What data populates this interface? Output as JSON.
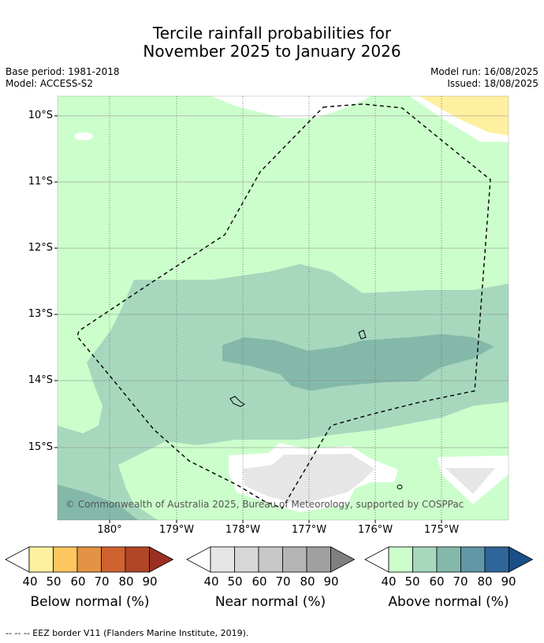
{
  "title": {
    "line1": "Tercile rainfall probabilities for",
    "line2": "November 2025 to January 2026"
  },
  "meta": {
    "base_period": "Base period: 1981-2018",
    "model": "Model: ACCESS-S2",
    "model_run": "Model run: 16/08/2025",
    "issued": "Issued: 18/08/2025"
  },
  "map": {
    "lat_labels": [
      "10°S",
      "11°S",
      "12°S",
      "13°S",
      "14°S",
      "15°S"
    ],
    "lon_labels": [
      "180°",
      "179°W",
      "178°W",
      "177°W",
      "176°W",
      "175°W"
    ],
    "copyright": "© Commonwealth of Australia 2025, Bureau of Meteorology, supported by COSPPac"
  },
  "colorbars": [
    {
      "name": "below-normal",
      "title": "Below normal (%)",
      "ticks": [
        "40",
        "50",
        "60",
        "70",
        "80",
        "90"
      ],
      "colors": [
        "#fff0a0",
        "#fec660",
        "#e39343",
        "#cf632f",
        "#b04626",
        "#9b3020"
      ]
    },
    {
      "name": "near-normal",
      "title": "Near normal (%)",
      "ticks": [
        "40",
        "50",
        "60",
        "70",
        "80",
        "90"
      ],
      "colors": [
        "#e6e6e6",
        "#d7d7d7",
        "#c8c8c8",
        "#b4b4b4",
        "#a0a0a0",
        "#808080"
      ]
    },
    {
      "name": "above-normal",
      "title": "Above normal (%)",
      "ticks": [
        "40",
        "50",
        "60",
        "70",
        "80",
        "90"
      ],
      "colors": [
        "#ccfecc",
        "#a7d8be",
        "#84b9aa",
        "#5f97a6",
        "#2f6699",
        "#1a4f88"
      ]
    }
  ],
  "footnote": "--  --  -- EEZ border V11 (Flanders Marine Institute, 2019)."
}
